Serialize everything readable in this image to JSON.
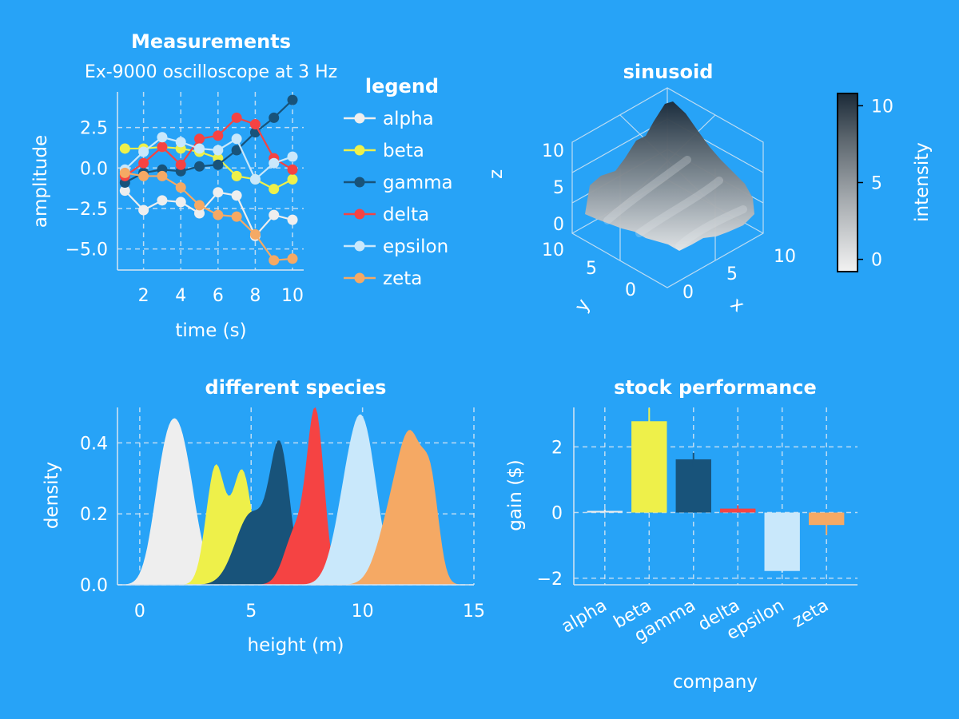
{
  "palette": [
    "#eeeeee",
    "#eef04a",
    "#18537a",
    "#f54343",
    "#c9e8fb",
    "#f5a964"
  ],
  "chart_data": [
    {
      "type": "line",
      "title": "Measurements",
      "subtitle": "Ex-9000 oscilloscope at 3 Hz",
      "xlabel": "time (s)",
      "ylabel": "amplitude",
      "xlim": [
        0.6,
        10.6
      ],
      "ylim": [
        -6.3,
        4.7
      ],
      "xticks": [
        2,
        4,
        6,
        8,
        10
      ],
      "yticks": [
        -5.0,
        -2.5,
        0.0,
        2.5
      ],
      "ytick_labels": [
        "−5.0",
        "−2.5",
        "0.0",
        "2.5"
      ],
      "legend_title": "legend",
      "legend_position": "right",
      "grid": true,
      "x": [
        1,
        2,
        3,
        4,
        5,
        6,
        7,
        8,
        9,
        10
      ],
      "series": [
        {
          "name": "alpha",
          "values": [
            -1.4,
            -2.6,
            -2.0,
            -2.1,
            -2.8,
            -1.5,
            -1.7,
            -4.2,
            -2.9,
            -3.2
          ]
        },
        {
          "name": "beta",
          "values": [
            1.2,
            1.2,
            1.3,
            1.2,
            1.0,
            0.6,
            -0.5,
            -0.7,
            -1.3,
            -0.7
          ]
        },
        {
          "name": "gamma",
          "values": [
            -0.9,
            -0.3,
            -0.1,
            -0.2,
            0.1,
            0.2,
            1.1,
            2.2,
            3.1,
            4.2
          ]
        },
        {
          "name": "delta",
          "values": [
            -0.5,
            0.3,
            1.3,
            0.2,
            1.8,
            2.0,
            3.1,
            2.7,
            0.6,
            -0.1
          ]
        },
        {
          "name": "epsilon",
          "values": [
            -0.1,
            1.0,
            1.9,
            1.6,
            1.2,
            1.1,
            1.8,
            -0.7,
            0.3,
            0.7
          ]
        },
        {
          "name": "zeta",
          "values": [
            -0.3,
            -0.5,
            -0.5,
            -1.2,
            -2.3,
            -2.9,
            -3.0,
            -4.1,
            -5.7,
            -5.6
          ]
        }
      ]
    },
    {
      "type": "surface",
      "title": "sinusoid",
      "xlabel": "x",
      "ylabel": "y",
      "zlabel": "z",
      "xlim": [
        0,
        10
      ],
      "ylim": [
        0,
        10
      ],
      "zlim": [
        0,
        11
      ],
      "xticks": [
        0,
        5,
        10
      ],
      "yticks": [
        0,
        5,
        10
      ],
      "zticks": [
        0,
        5,
        10
      ],
      "colorbar_label": "intensity",
      "colorbar_ticks": [
        0,
        5,
        10
      ],
      "colorbar_range": [
        -0.8,
        10.8
      ]
    },
    {
      "type": "area",
      "title": "different species",
      "xlabel": "height (m)",
      "ylabel": "density",
      "xlim": [
        -1,
        15
      ],
      "ylim": [
        0,
        0.5
      ],
      "xticks": [
        0,
        5,
        10,
        15
      ],
      "yticks": [
        0.0,
        0.2,
        0.4
      ],
      "ytick_labels": [
        "0.0",
        "0.2",
        "0.4"
      ],
      "grid": true,
      "series": [
        {
          "peaks": [
            [
              1.8,
              0.4,
              0.65
            ],
            [
              1.0,
              0.18,
              0.5
            ]
          ]
        },
        {
          "peaks": [
            [
              3.4,
              0.33,
              0.42
            ],
            [
              4.6,
              0.32,
              0.45
            ]
          ]
        },
        {
          "peaks": [
            [
              6.3,
              0.37,
              0.45
            ],
            [
              5.0,
              0.2,
              0.7
            ]
          ]
        },
        {
          "peaks": [
            [
              7.9,
              0.47,
              0.38
            ],
            [
              7.0,
              0.15,
              0.5
            ]
          ]
        },
        {
          "peaks": [
            [
              10.1,
              0.38,
              0.6
            ],
            [
              9.3,
              0.2,
              0.6
            ]
          ]
        },
        {
          "peaks": [
            [
              12.2,
              0.39,
              0.6
            ],
            [
              13.1,
              0.2,
              0.35
            ],
            [
              11.2,
              0.15,
              0.6
            ]
          ]
        }
      ]
    },
    {
      "type": "bar",
      "title": "stock performance",
      "xlabel": "company",
      "ylabel": "gain ($)",
      "ylim": [
        -2.2,
        3.2
      ],
      "yticks": [
        -2,
        0,
        2
      ],
      "ytick_labels": [
        "−2",
        "0",
        "2"
      ],
      "categories": [
        "alpha",
        "beta",
        "gamma",
        "delta",
        "epsilon",
        "zeta"
      ],
      "values": [
        0.05,
        2.78,
        1.62,
        0.12,
        -1.78,
        -0.38
      ],
      "errors": [
        0.05,
        0.4,
        0.2,
        0.1,
        0.05,
        0.3
      ],
      "grid": true
    }
  ]
}
